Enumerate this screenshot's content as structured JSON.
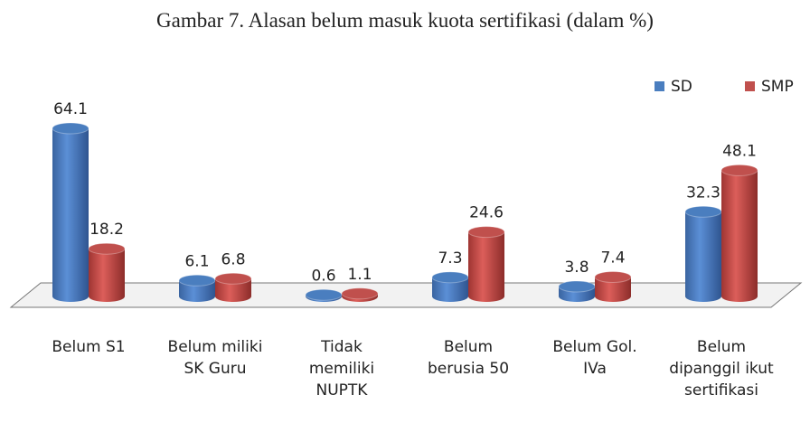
{
  "chart_data": {
    "type": "bar3d",
    "title": "Gambar 7. Alasan belum masuk kuota sertifikasi (dalam %)",
    "categories": [
      "Belum S1",
      "Belum miliki SK Guru",
      "Tidak memiliki NUPTK",
      "Belum berusia 50",
      "Belum Gol. IVa",
      "Belum dipanggil ikut sertifikasi"
    ],
    "series": [
      {
        "name": "SD",
        "color": "#4a7ebf",
        "values": [
          64.1,
          6.1,
          0.6,
          7.3,
          3.8,
          32.3
        ]
      },
      {
        "name": "SMP",
        "color": "#c0504d",
        "values": [
          18.2,
          6.8,
          1.1,
          24.6,
          7.4,
          48.1
        ]
      }
    ],
    "legend": "top-right"
  }
}
